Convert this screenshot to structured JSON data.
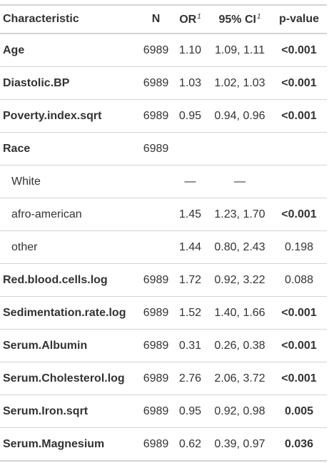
{
  "header": {
    "characteristic": "Characteristic",
    "n": "N",
    "or": "OR",
    "or_footnote": "1",
    "ci": "95% CI",
    "ci_footnote": "1",
    "pvalue": "p-value"
  },
  "rows": [
    {
      "label": "Age",
      "n": "6989",
      "or": "1.10",
      "ci": "1.09, 1.11",
      "p": "<0.001"
    },
    {
      "label": "Diastolic.BP",
      "n": "6989",
      "or": "1.03",
      "ci": "1.02, 1.03",
      "p": "<0.001"
    },
    {
      "label": "Poverty.index.sqrt",
      "n": "6989",
      "or": "0.95",
      "ci": "0.94, 0.96",
      "p": "<0.001"
    },
    {
      "label": "Race",
      "n": "6989",
      "or": "",
      "ci": "",
      "p": ""
    },
    {
      "label": "White",
      "n": "",
      "or": "—",
      "ci": "—",
      "p": ""
    },
    {
      "label": "afro-american",
      "n": "",
      "or": "1.45",
      "ci": "1.23, 1.70",
      "p": "<0.001"
    },
    {
      "label": "other",
      "n": "",
      "or": "1.44",
      "ci": "0.80, 2.43",
      "p": "0.198"
    },
    {
      "label": "Red.blood.cells.log",
      "n": "6989",
      "or": "1.72",
      "ci": "0.92, 3.22",
      "p": "0.088"
    },
    {
      "label": "Sedimentation.rate.log",
      "n": "6989",
      "or": "1.52",
      "ci": "1.40, 1.66",
      "p": "<0.001"
    },
    {
      "label": "Serum.Albumin",
      "n": "6989",
      "or": "0.31",
      "ci": "0.26, 0.38",
      "p": "<0.001"
    },
    {
      "label": "Serum.Cholesterol.log",
      "n": "6989",
      "or": "2.76",
      "ci": "2.06, 3.72",
      "p": "<0.001"
    },
    {
      "label": "Serum.Iron.sqrt",
      "n": "6989",
      "or": "0.95",
      "ci": "0.92, 0.98",
      "p": "0.005"
    },
    {
      "label": "Serum.Magnesium",
      "n": "6989",
      "or": "0.62",
      "ci": "0.39, 0.97",
      "p": "0.036"
    }
  ]
}
